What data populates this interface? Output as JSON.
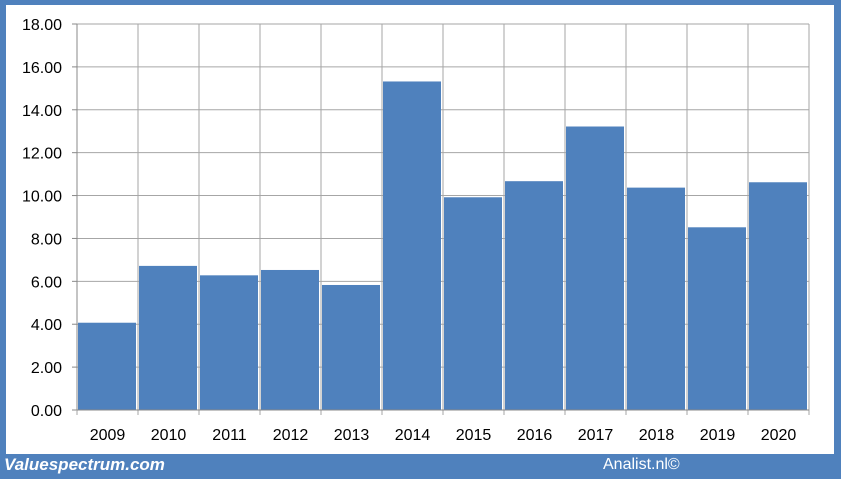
{
  "footer": {
    "left_text": "Valuespectrum.com",
    "right_text": "Analist.nl©"
  },
  "colors": {
    "frame": "#4f81bd",
    "bar": "#4f81bd",
    "grid": "#a6a6a6"
  },
  "chart_data": {
    "type": "bar",
    "title": "",
    "xlabel": "",
    "ylabel": "",
    "ylim": [
      0,
      18
    ],
    "yticks": [
      0,
      2,
      4,
      6,
      8,
      10,
      12,
      14,
      16,
      18
    ],
    "ytick_labels": [
      "0.00",
      "2.00",
      "4.00",
      "6.00",
      "8.00",
      "10.00",
      "12.00",
      "14.00",
      "16.00",
      "18.00"
    ],
    "grid": true,
    "categories": [
      "2009",
      "2010",
      "2011",
      "2012",
      "2013",
      "2014",
      "2015",
      "2016",
      "2017",
      "2018",
      "2019",
      "2020"
    ],
    "values": [
      4.07,
      6.72,
      6.28,
      6.53,
      5.83,
      15.32,
      9.92,
      10.67,
      13.22,
      10.37,
      8.52,
      10.62
    ]
  }
}
